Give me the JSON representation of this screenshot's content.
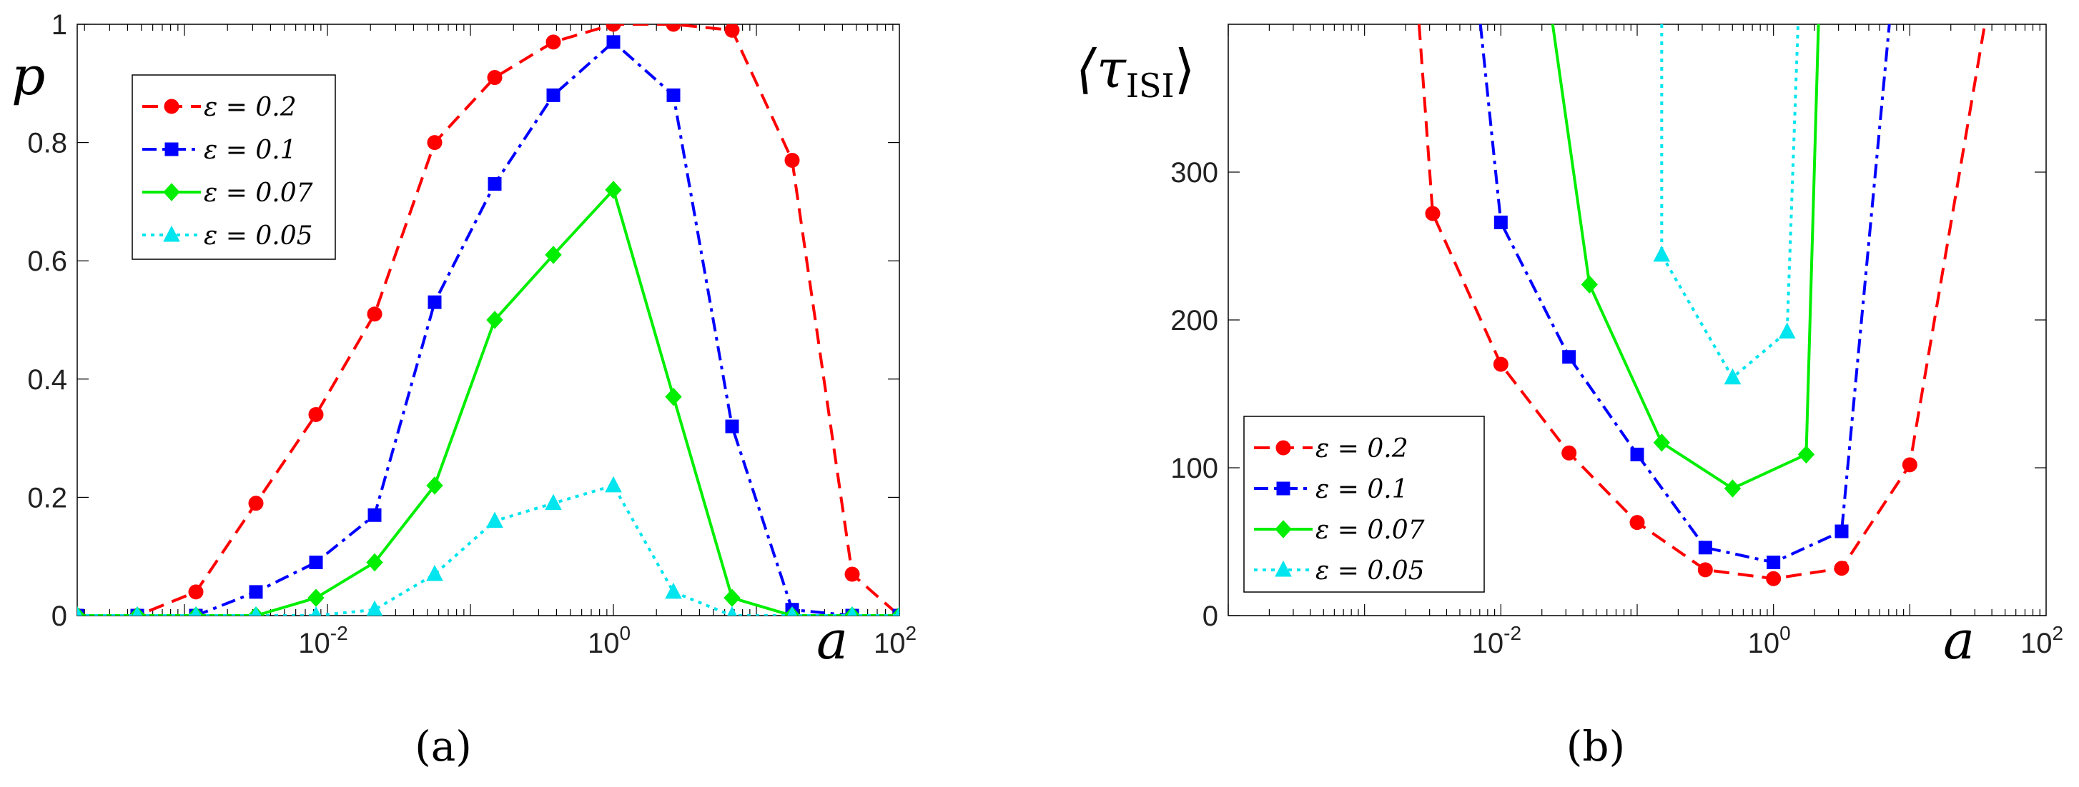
{
  "chart_data": [
    {
      "type": "line",
      "panel_label": "(a)",
      "xscale": "log",
      "xlabel": "a",
      "ylabel": "p",
      "xlim_log10": [
        -3.75,
        2.0
      ],
      "ylim": [
        0,
        1
      ],
      "xticks": [
        {
          "base": "10",
          "exp": "-2",
          "log10": -2
        },
        {
          "base": "10",
          "exp": "0",
          "log10": 0
        },
        {
          "base": "10",
          "exp": "2",
          "log10": 2
        }
      ],
      "yticks": [
        {
          "label": "0",
          "value": 0
        },
        {
          "label": "0.2",
          "value": 0.2
        },
        {
          "label": "0.4",
          "value": 0.4
        },
        {
          "label": "0.6",
          "value": 0.6
        },
        {
          "label": "0.8",
          "value": 0.8
        },
        {
          "label": "1",
          "value": 1
        }
      ],
      "legend_position": "top-left",
      "series": [
        {
          "name": "ε = 0.2",
          "color": "#ff0000",
          "dash": "dashed",
          "marker": "circle",
          "log10_x": [
            -3.75,
            -3.33,
            -2.92,
            -2.5,
            -2.08,
            -1.67,
            -1.25,
            -0.83,
            -0.42,
            0,
            0.42,
            0.83,
            1.25,
            1.67,
            2.0
          ],
          "y": [
            0,
            0,
            0.04,
            0.19,
            0.34,
            0.51,
            0.8,
            0.91,
            0.97,
            1.0,
            1.0,
            0.99,
            0.77,
            0.07,
            0
          ]
        },
        {
          "name": "ε = 0.1",
          "color": "#0000ff",
          "dash": "dashdot",
          "marker": "square",
          "log10_x": [
            -3.75,
            -3.33,
            -2.92,
            -2.5,
            -2.08,
            -1.67,
            -1.25,
            -0.83,
            -0.42,
            0,
            0.42,
            0.83,
            1.25,
            1.67,
            2.0
          ],
          "y": [
            0,
            0,
            0,
            0.04,
            0.09,
            0.17,
            0.53,
            0.73,
            0.88,
            0.97,
            0.88,
            0.32,
            0.01,
            0,
            0
          ]
        },
        {
          "name": "ε = 0.07",
          "color": "#00ee00",
          "dash": "solid",
          "marker": "diamond",
          "log10_x": [
            -3.75,
            -3.33,
            -2.92,
            -2.5,
            -2.08,
            -1.67,
            -1.25,
            -0.83,
            -0.42,
            0,
            0.42,
            0.83,
            1.25,
            1.67,
            2.0
          ],
          "y": [
            0,
            0,
            0,
            0,
            0.03,
            0.09,
            0.22,
            0.5,
            0.61,
            0.72,
            0.37,
            0.03,
            0,
            0,
            0
          ]
        },
        {
          "name": "ε = 0.05",
          "color": "#00e5ee",
          "dash": "dotted",
          "marker": "triangle",
          "log10_x": [
            -3.75,
            -3.33,
            -2.92,
            -2.5,
            -2.08,
            -1.67,
            -1.25,
            -0.83,
            -0.42,
            0,
            0.42,
            0.83,
            1.25,
            1.67,
            2.0
          ],
          "y": [
            0,
            0,
            0,
            0,
            0,
            0.01,
            0.07,
            0.16,
            0.19,
            0.22,
            0.04,
            0,
            0,
            0,
            0
          ]
        }
      ]
    },
    {
      "type": "line",
      "panel_label": "(b)",
      "xscale": "log",
      "xlabel": "a",
      "ylabel": "⟨τ",
      "ylabel_sub": "ISI",
      "ylabel_close": "⟩",
      "xlim_log10": [
        -4.0,
        2.0
      ],
      "ylim": [
        0,
        400
      ],
      "xticks": [
        {
          "base": "10",
          "exp": "-2",
          "log10": -2
        },
        {
          "base": "10",
          "exp": "0",
          "log10": 0
        },
        {
          "base": "10",
          "exp": "2",
          "log10": 2
        }
      ],
      "yticks": [
        {
          "label": "0",
          "value": 0
        },
        {
          "label": "100",
          "value": 100
        },
        {
          "label": "200",
          "value": 200
        },
        {
          "label": "300",
          "value": 300
        }
      ],
      "legend_position": "bottom-left",
      "series": [
        {
          "name": "ε = 0.2",
          "color": "#ff0000",
          "dash": "dashed",
          "marker": "circle",
          "log10_x": [
            -2.6,
            -2.5,
            -2.0,
            -1.5,
            -1.0,
            -0.5,
            0,
            0.5,
            1.0,
            1.55
          ],
          "y": [
            400,
            272,
            170,
            110,
            63,
            31,
            25,
            32,
            102,
            400
          ],
          "marker_mask": [
            false,
            true,
            true,
            true,
            true,
            true,
            true,
            true,
            true,
            false
          ]
        },
        {
          "name": "ε = 0.1",
          "color": "#0000ff",
          "dash": "dashdot",
          "marker": "square",
          "log10_x": [
            -2.15,
            -2.0,
            -1.5,
            -1.0,
            -0.5,
            0,
            0.5,
            0.85
          ],
          "y": [
            400,
            266,
            175,
            109,
            46,
            36,
            57,
            400
          ],
          "marker_mask": [
            false,
            true,
            true,
            true,
            true,
            true,
            true,
            false
          ]
        },
        {
          "name": "ε = 0.07",
          "color": "#00ee00",
          "dash": "solid",
          "marker": "diamond",
          "log10_x": [
            -1.62,
            -1.35,
            -0.82,
            -0.3,
            0.24,
            0.33
          ],
          "y": [
            400,
            224,
            117,
            86,
            109,
            400
          ],
          "marker_mask": [
            false,
            true,
            true,
            true,
            true,
            false
          ]
        },
        {
          "name": "ε = 0.05",
          "color": "#00e5ee",
          "dash": "dotted",
          "marker": "triangle",
          "log10_x": [
            -0.82,
            -0.82,
            -0.3,
            0.1,
            0.18
          ],
          "y": [
            400,
            244,
            161,
            192,
            400
          ],
          "marker_mask": [
            false,
            true,
            true,
            true,
            false
          ]
        }
      ]
    }
  ]
}
